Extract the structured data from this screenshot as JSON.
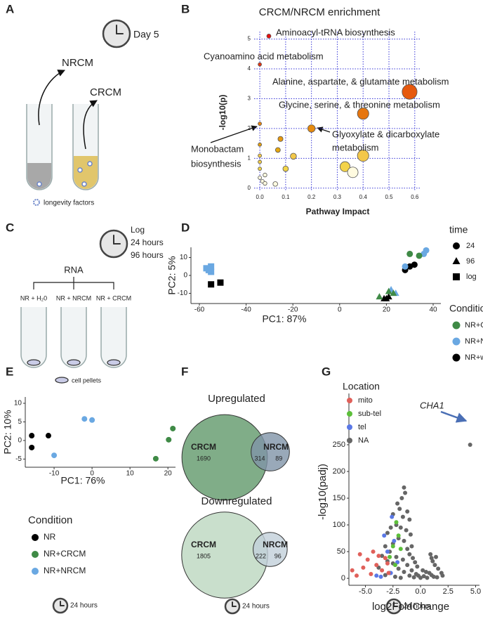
{
  "panel_labels": [
    "A",
    "B",
    "C",
    "D",
    "E",
    "F",
    "G"
  ],
  "panel_a": {
    "day": "Day 5",
    "nrcm": "NRCM",
    "crcm": "CRCM",
    "legend": "longevity factors"
  },
  "panel_c": {
    "times": [
      "Log",
      "24 hours",
      "96 hours"
    ],
    "rna": "RNA",
    "tubes": [
      "NR + H₂0",
      "NR + NRCM",
      "NR + CRCM"
    ],
    "legend": "cell pellets"
  },
  "chart_data": [
    {
      "type": "bubble",
      "title": "CRCM/NRCM enrichment",
      "x_label": "Pathway Impact",
      "y_label": "-log10(p)",
      "x": [
        0.035,
        0,
        0.58,
        0.4,
        0.2,
        0,
        0.08,
        0,
        0.07,
        0.13,
        0.4,
        0,
        0,
        0.33,
        0.36,
        0.1,
        0,
        0.02,
        0,
        0.01,
        0.06,
        0.02
      ],
      "y": [
        5.1,
        4.15,
        3.23,
        2.5,
        2.0,
        2.16,
        1.65,
        1.46,
        1.28,
        1.07,
        1.09,
        1.09,
        0.88,
        0.72,
        0.53,
        0.65,
        0.65,
        0.44,
        0.35,
        0.23,
        0.14,
        0.16
      ],
      "xlim": [
        -0.022,
        0.625
      ],
      "ylim": [
        -0.1,
        5.25
      ],
      "xticks": [
        {
          "value": 0,
          "label": "0.0"
        },
        {
          "value": 0.1,
          "label": "0.1"
        },
        {
          "value": 0.2,
          "label": "0.2"
        },
        {
          "value": 0.3,
          "label": "0.3"
        },
        {
          "value": 0.4,
          "label": "0.4"
        },
        {
          "value": 0.5,
          "label": "0.5"
        },
        {
          "value": 0.6,
          "label": "0.6"
        }
      ],
      "yticks": [
        0,
        1,
        2,
        3,
        4,
        5
      ],
      "grid": true,
      "annotations": [
        [
          "Aminoacyl-tRNA biosynthesis"
        ],
        [
          "Cyanoamino acid metabolism"
        ],
        [
          "Alanine, aspartate, & glutamate metabolism"
        ],
        [
          "Glycine, serine, & threonine metabolism"
        ],
        [
          "Glyoxylate & dicarboxylate",
          "metabolism"
        ],
        [
          "Monobactam",
          "biosynthesis"
        ]
      ]
    },
    {
      "type": "scatter",
      "x_label": "PC1: 87%",
      "y_label": "PC2: 5%",
      "legend_title": "Condition",
      "shape_legend": {
        "title": "time",
        "items": [
          "24",
          "96",
          "log"
        ]
      },
      "xlim": [
        -63.6,
        43.3
      ],
      "ylim": [
        -15.7,
        15.7
      ],
      "xticks": [
        -60,
        -40,
        -20,
        0,
        20,
        40
      ],
      "yticks": [
        -10,
        0,
        10
      ],
      "series": [
        {
          "name": "NR+CRCM",
          "color": "#3f8a46",
          "x": [
            30,
            34,
            21,
            17,
            23
          ],
          "y": [
            12,
            11,
            -9,
            -12,
            -10
          ],
          "time": [
            "24",
            "24",
            "96",
            "96",
            "96"
          ]
        },
        {
          "name": "NR+NRCM",
          "color": "#6aa8e2",
          "x": [
            -57,
            -56,
            -55,
            -55,
            28,
            37,
            36,
            22,
            24
          ],
          "y": [
            4,
            3,
            2,
            5,
            5,
            14,
            12,
            -8,
            -10
          ],
          "time": [
            "log",
            "log",
            "log",
            "log",
            "24",
            "24",
            "24",
            "96",
            "96"
          ]
        },
        {
          "name": "NR+water",
          "color": "#000000",
          "x": [
            -55,
            -51,
            28,
            30,
            32,
            19,
            21,
            20
          ],
          "y": [
            -5,
            -4,
            3,
            5,
            6,
            -13,
            -12,
            -13
          ],
          "time": [
            "log",
            "log",
            "24",
            "24",
            "24",
            "96",
            "96",
            "96"
          ]
        }
      ]
    },
    {
      "type": "scatter",
      "x_label": "PC1: 76%",
      "y_label": "PC2: 10%",
      "legend_title": "Condition",
      "note": "24 hours",
      "xlim": [
        -17.6,
        22
      ],
      "ylim": [
        -7.2,
        11.7
      ],
      "xticks": [
        -10,
        0,
        10,
        20
      ],
      "yticks": [
        -5,
        0,
        5,
        10
      ],
      "series": [
        {
          "name": "NR",
          "color": "#000000",
          "x": [
            -15.9,
            -15.9,
            -11.5
          ],
          "y": [
            1.3,
            -1.9,
            1.3
          ]
        },
        {
          "name": "NR+CRCM",
          "color": "#3f8a46",
          "x": [
            21.3,
            20.2,
            16.8
          ],
          "y": [
            3.2,
            0.2,
            -4.9
          ]
        },
        {
          "name": "NR+NRCM",
          "color": "#6aa8e2",
          "x": [
            -2,
            0,
            -10
          ],
          "y": [
            5.8,
            5.5,
            -4
          ]
        }
      ]
    },
    {
      "type": "venn",
      "note": "24 hours",
      "sets": [
        {
          "title": "Upregulated",
          "a_name": "CRCM",
          "a_only": 1690,
          "overlap": 314,
          "b_name": "NRCM",
          "b_only": 89,
          "a_color": "#80ad88",
          "b_color": "#7f93a8"
        },
        {
          "title": "Downregulated",
          "a_name": "CRCM",
          "a_only": 1805,
          "overlap": 222,
          "b_name": "NRCM",
          "b_only": 96,
          "a_color": "#c9dfcc",
          "b_color": "#c2d0da"
        }
      ]
    },
    {
      "type": "scatter",
      "x_label": "log2FoldChange",
      "y_label": "-log10(padj)",
      "legend_title": "Location",
      "note": "24 hours",
      "annotations": [
        [
          "CHA1"
        ]
      ],
      "xlim": [
        -6.5,
        5.35
      ],
      "ylim": [
        -13,
        346
      ],
      "xticks": [
        {
          "value": -5,
          "label": "-5.0"
        },
        {
          "value": -2.5,
          "label": "-2.5"
        },
        {
          "value": 0,
          "label": "0.0"
        },
        {
          "value": 2.5,
          "label": "2.5"
        },
        {
          "value": 5,
          "label": "5.0"
        }
      ],
      "yticks": [
        0,
        50,
        100,
        150,
        200,
        250
      ],
      "series": [
        {
          "name": "mito",
          "color": "#e0605a",
          "x": [
            -6.2,
            -5.5,
            -5.2,
            -4.8,
            -4.5,
            -4.3,
            -4,
            -3.8,
            -3.5,
            -3.2,
            -3,
            -2.9,
            -5.8
          ],
          "y": [
            15,
            45,
            20,
            35,
            8,
            50,
            25,
            42,
            15,
            38,
            28,
            10,
            5
          ]
        },
        {
          "name": "sub-tel",
          "color": "#5cbf3a",
          "x": [
            -2.2,
            -2,
            -2.5,
            -2.8,
            -1.8,
            -2.3
          ],
          "y": [
            105,
            80,
            60,
            40,
            55,
            25
          ]
        },
        {
          "name": "tel",
          "color": "#5a78e6",
          "x": [
            -2.6,
            -3.3,
            -2.4,
            -3,
            -2.1,
            -4,
            -3.6,
            -2.7
          ],
          "y": [
            115,
            80,
            70,
            50,
            30,
            5,
            3,
            10
          ]
        },
        {
          "name": "NA",
          "color": "#666666",
          "x": [
            -1.5,
            -1.4,
            -1.7,
            -2.1,
            -1.9,
            -1.2,
            -2.5,
            -1.6,
            -1,
            -2.2,
            -1.8,
            -2.7,
            -1.3,
            -3,
            -0.9,
            -2,
            -1.5,
            -2.5,
            -3.2,
            -0.8,
            -1.2,
            -2.8,
            -1,
            -3.5,
            -2.2,
            -0.7,
            -1.6,
            -3,
            -0.5,
            -2.5,
            -1.2,
            -0.3,
            -3.8,
            -2,
            -0.8,
            0.2,
            -1.5,
            0.5,
            -2.8,
            -0.4,
            0.8,
            -3.2,
            -1,
            1,
            0.3,
            -2.3,
            1.2,
            -0.6,
            0.6,
            1.5,
            -1.8,
            0,
            1,
            1.1,
            1.3,
            1.6,
            1.9,
            2,
            0.9,
            1.4,
            -0.2,
            4.5
          ],
          "y": [
            170,
            160,
            150,
            140,
            130,
            125,
            120,
            115,
            110,
            100,
            95,
            95,
            90,
            85,
            82,
            75,
            70,
            65,
            60,
            60,
            55,
            50,
            45,
            42,
            40,
            38,
            35,
            32,
            30,
            28,
            25,
            22,
            20,
            18,
            15,
            15,
            12,
            12,
            10,
            8,
            10,
            6,
            5,
            6,
            4,
            3,
            3,
            2,
            1,
            2,
            1,
            1,
            38,
            32,
            25,
            18,
            10,
            5,
            45,
            40,
            5,
            250
          ]
        }
      ]
    }
  ]
}
